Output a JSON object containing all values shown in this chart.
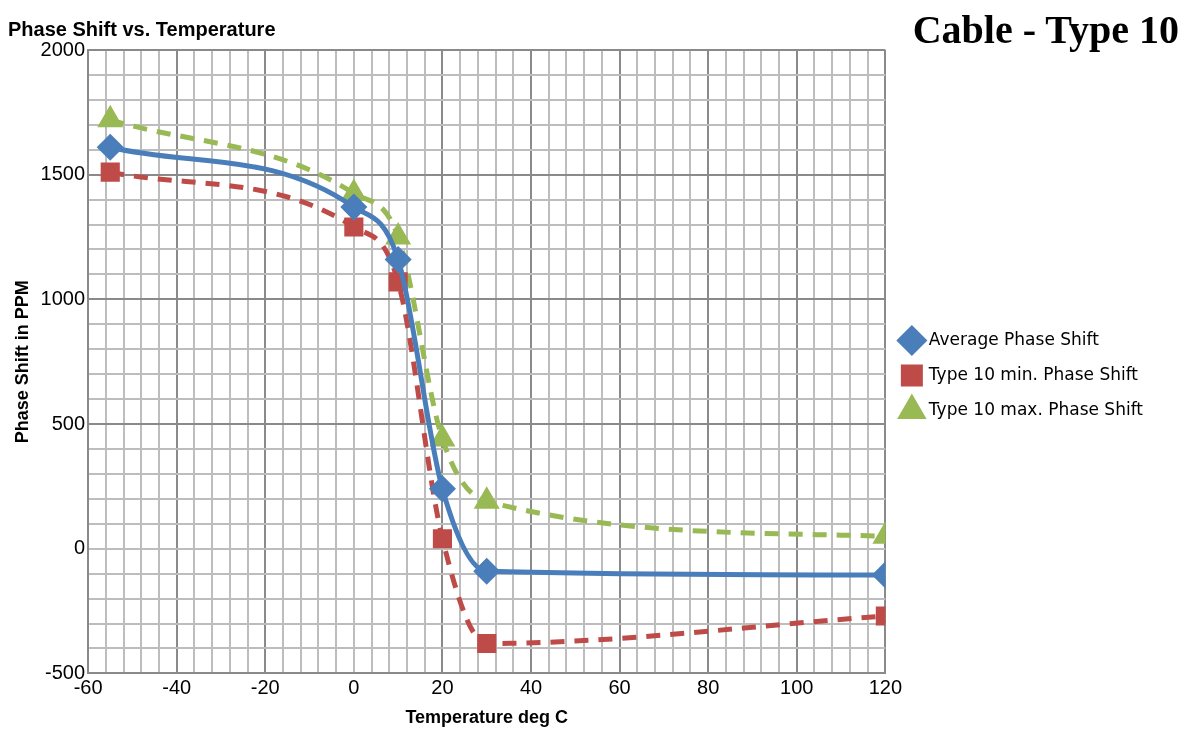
{
  "chart_data": {
    "type": "line",
    "title": "Phase Shift vs. Temperature",
    "xlabel": "Temperature deg C",
    "ylabel": "Phase Shift in PPM",
    "annotations": [
      "Cable - Type 10"
    ],
    "xlim": [
      -60,
      120
    ],
    "ylim": [
      -500,
      2000
    ],
    "xticks": [
      -60,
      {
        "value": -56,
        "label": null
      },
      {
        "value": -52,
        "label": null
      },
      {
        "value": -48,
        "label": null
      },
      {
        "value": -44,
        "label": null
      },
      -40,
      {
        "value": -36,
        "label": null
      },
      {
        "value": -32,
        "label": null
      },
      {
        "value": -28,
        "label": null
      },
      {
        "value": -24,
        "label": null
      },
      -20,
      {
        "value": -16,
        "label": null
      },
      {
        "value": -12,
        "label": null
      },
      {
        "value": -8,
        "label": null
      },
      {
        "value": -4,
        "label": null
      },
      0,
      {
        "value": 4,
        "label": null
      },
      {
        "value": 8,
        "label": null
      },
      {
        "value": 12,
        "label": null
      },
      {
        "value": 16,
        "label": null
      },
      20,
      {
        "value": 24,
        "label": null
      },
      {
        "value": 28,
        "label": null
      },
      {
        "value": 32,
        "label": null
      },
      {
        "value": 36,
        "label": null
      },
      40,
      {
        "value": 44,
        "label": null
      },
      {
        "value": 48,
        "label": null
      },
      {
        "value": 52,
        "label": null
      },
      {
        "value": 56,
        "label": null
      },
      60,
      {
        "value": 64,
        "label": null
      },
      {
        "value": 68,
        "label": null
      },
      {
        "value": 72,
        "label": null
      },
      {
        "value": 76,
        "label": null
      },
      80,
      {
        "value": 84,
        "label": null
      },
      {
        "value": 88,
        "label": null
      },
      {
        "value": 92,
        "label": null
      },
      {
        "value": 96,
        "label": null
      },
      100,
      {
        "value": 104,
        "label": null
      },
      {
        "value": 108,
        "label": null
      },
      {
        "value": 112,
        "label": null
      },
      {
        "value": 116,
        "label": null
      },
      120
    ],
    "yticks": [
      -500,
      {
        "value": -400,
        "label": null
      },
      {
        "value": -300,
        "label": null
      },
      {
        "value": -200,
        "label": null
      },
      {
        "value": -100,
        "label": null
      },
      0,
      {
        "value": 100,
        "label": null
      },
      {
        "value": 200,
        "label": null
      },
      {
        "value": 300,
        "label": null
      },
      {
        "value": 400,
        "label": null
      },
      500,
      {
        "value": 600,
        "label": null
      },
      {
        "value": 700,
        "label": null
      },
      {
        "value": 800,
        "label": null
      },
      {
        "value": 900,
        "label": null
      },
      1000,
      {
        "value": 1100,
        "label": null
      },
      {
        "value": 1200,
        "label": null
      },
      {
        "value": 1300,
        "label": null
      },
      {
        "value": 1400,
        "label": null
      },
      1500,
      {
        "value": 1600,
        "label": null
      },
      {
        "value": 1700,
        "label": null
      },
      {
        "value": 1800,
        "label": null
      },
      {
        "value": 1900,
        "label": null
      },
      2000
    ],
    "grid": true,
    "legend": "right",
    "x": [
      -55,
      0,
      10,
      20,
      30,
      120
    ],
    "series": [
      {
        "name": "Average Phase Shift",
        "color": "#4a7ebb",
        "marker": "diamond",
        "line_style": "solid",
        "values": [
          1610,
          1370,
          1160,
          240,
          -90,
          -105
        ]
      },
      {
        "name": "Type 10 min. Phase Shift",
        "color": "#be4b48",
        "marker": "square",
        "line_style": "dashed",
        "values": [
          1510,
          1290,
          1070,
          40,
          -380,
          -270
        ]
      },
      {
        "name": "Type 10 max. Phase Shift",
        "color": "#98b954",
        "marker": "triangle",
        "line_style": "dashed",
        "values": [
          1720,
          1425,
          1250,
          440,
          190,
          50
        ]
      }
    ]
  }
}
